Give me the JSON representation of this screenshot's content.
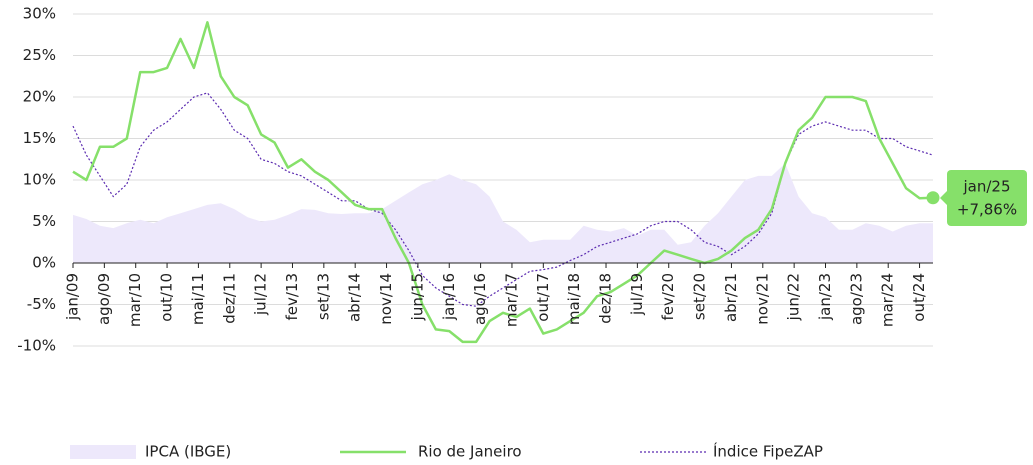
{
  "chart_data": {
    "type": "line",
    "x": [
      0,
      3,
      6,
      9,
      12,
      15,
      18,
      21,
      24,
      27,
      30,
      33,
      36,
      39,
      42,
      45,
      48,
      51,
      54,
      57,
      60,
      63,
      66,
      69,
      72,
      75,
      78,
      81,
      84,
      87,
      90,
      93,
      96,
      99,
      102,
      105,
      108,
      111,
      114,
      117,
      120,
      123,
      126,
      129,
      132,
      135,
      138,
      141,
      144,
      147,
      150,
      153,
      156,
      159,
      162,
      165,
      168,
      171,
      174,
      177,
      180,
      183,
      186,
      189,
      192
    ],
    "xlim": [
      0,
      192
    ],
    "xticks": [
      {
        "value": 0,
        "label": "jan/09"
      },
      {
        "value": 7,
        "label": "ago/09"
      },
      {
        "value": 14,
        "label": "mar/10"
      },
      {
        "value": 21,
        "label": "out/10"
      },
      {
        "value": 28,
        "label": "mai/11"
      },
      {
        "value": 35,
        "label": "dez/11"
      },
      {
        "value": 42,
        "label": "jul/12"
      },
      {
        "value": 49,
        "label": "fev/13"
      },
      {
        "value": 56,
        "label": "set/13"
      },
      {
        "value": 63,
        "label": "abr/14"
      },
      {
        "value": 70,
        "label": "nov/14"
      },
      {
        "value": 77,
        "label": "jun/15"
      },
      {
        "value": 84,
        "label": "jan/16"
      },
      {
        "value": 91,
        "label": "ago/16"
      },
      {
        "value": 98,
        "label": "mar/17"
      },
      {
        "value": 105,
        "label": "out/17"
      },
      {
        "value": 112,
        "label": "mai/18"
      },
      {
        "value": 119,
        "label": "dez/18"
      },
      {
        "value": 126,
        "label": "jul/19"
      },
      {
        "value": 133,
        "label": "fev/20"
      },
      {
        "value": 140,
        "label": "set/20"
      },
      {
        "value": 147,
        "label": "abr/21"
      },
      {
        "value": 154,
        "label": "nov/21"
      },
      {
        "value": 161,
        "label": "jun/22"
      },
      {
        "value": 168,
        "label": "jan/23"
      },
      {
        "value": 175,
        "label": "ago/23"
      },
      {
        "value": 182,
        "label": "mar/24"
      },
      {
        "value": 189,
        "label": "out/24"
      }
    ],
    "ylim": [
      -10,
      30
    ],
    "yticks": [
      {
        "value": -10,
        "label": "-10%"
      },
      {
        "value": -5,
        "label": "-5%"
      },
      {
        "value": 0,
        "label": "0%"
      },
      {
        "value": 5,
        "label": "5%"
      },
      {
        "value": 10,
        "label": "10%"
      },
      {
        "value": 15,
        "label": "15%"
      },
      {
        "value": 20,
        "label": "20%"
      },
      {
        "value": 25,
        "label": "25%"
      },
      {
        "value": 30,
        "label": "30%"
      }
    ],
    "grid": true,
    "series": [
      {
        "name": "IPCA (IBGE)",
        "style": "area",
        "color": "#ede8fb",
        "values": [
          5.8,
          5.3,
          4.5,
          4.2,
          4.8,
          5.2,
          4.8,
          5.5,
          6,
          6.5,
          7,
          7.2,
          6.5,
          5.5,
          5,
          5.2,
          5.8,
          6.5,
          6.4,
          6,
          5.9,
          6,
          6,
          6.5,
          7.5,
          8.5,
          9.5,
          10,
          10.7,
          10,
          9.5,
          8,
          5,
          4,
          2.5,
          2.8,
          2.8,
          2.8,
          4.5,
          4,
          3.8,
          4.2,
          3.3,
          4,
          4,
          2.2,
          2.5,
          4.5,
          6,
          8,
          10,
          10.5,
          10.5,
          12,
          8,
          6,
          5.5,
          4,
          4,
          4.8,
          4.5,
          3.8,
          4.5,
          4.8,
          4.8
        ]
      },
      {
        "name": "Rio de Janeiro",
        "style": "solid",
        "color": "#86e06a",
        "values": [
          11,
          10,
          14,
          14,
          15,
          23,
          23,
          23.5,
          27,
          23.5,
          29,
          22.5,
          20,
          19,
          15.5,
          14.5,
          11.5,
          12.5,
          11,
          10,
          8.5,
          7,
          6.5,
          6.5,
          3,
          0,
          -5,
          -8,
          -8.2,
          -9.5,
          -9.5,
          -7,
          -6,
          -6.5,
          -5.5,
          -8.5,
          -8,
          -7,
          -6,
          -4,
          -3.5,
          -2.5,
          -1.5,
          0,
          1.5,
          1,
          0.5,
          0,
          0.5,
          1.5,
          3,
          4,
          6.5,
          12,
          16,
          17.5,
          20,
          20,
          20,
          19.5,
          15,
          12,
          9,
          7.8,
          7.86
        ]
      },
      {
        "name": "Índice FipeZAP",
        "style": "dotted",
        "color": "#5b2bb0",
        "values": [
          16.5,
          13,
          10.5,
          8,
          9.5,
          14,
          16,
          17,
          18.5,
          20,
          20.5,
          18.5,
          16,
          15,
          12.5,
          12,
          11,
          10.5,
          9.5,
          8.5,
          7.5,
          7.5,
          6.5,
          6,
          4,
          1.5,
          -1.5,
          -3,
          -4,
          -5,
          -5.2,
          -4,
          -3,
          -2,
          -1,
          -0.8,
          -0.5,
          0.3,
          1,
          2,
          2.5,
          3,
          3.5,
          4.5,
          5,
          5,
          4,
          2.5,
          2,
          1,
          2,
          3.5,
          6,
          12,
          15.5,
          16.5,
          17,
          16.5,
          16,
          16,
          15,
          15,
          14,
          13.5,
          13
        ]
      }
    ],
    "annotation": {
      "date": "jan/25",
      "label": "+7,86%"
    }
  }
}
